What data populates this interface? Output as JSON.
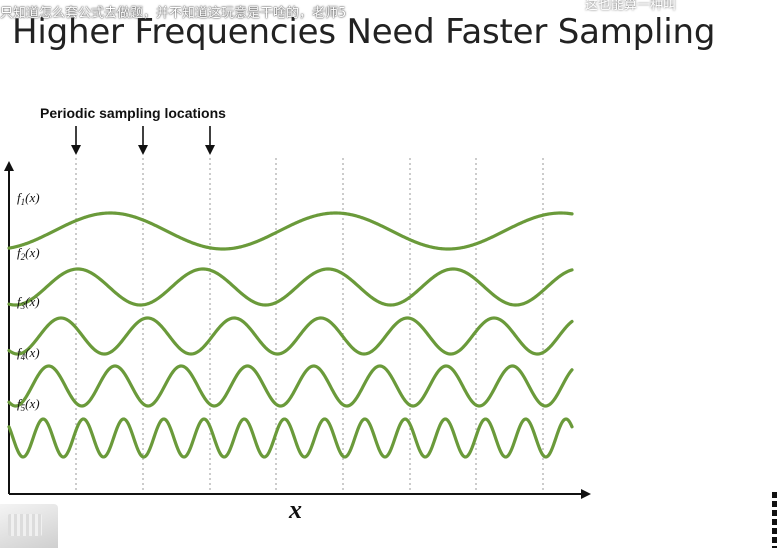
{
  "overlay": {
    "comment_left": "只知道怎么套公式去做题，并不知道这玩意是干啥的，老师5",
    "comment_right": "这也能算一种叫"
  },
  "slide": {
    "title": "Higher Frequencies Need Faster Sampling"
  },
  "figure": {
    "sampling_label": "Periodic sampling locations",
    "x_axis_label": "x",
    "sampling_positions": [
      76,
      143,
      210,
      276,
      343,
      410,
      476,
      543
    ],
    "arrow_positions": [
      76,
      143,
      210
    ],
    "functions": [
      {
        "label": "f1(x)",
        "sub": "1",
        "name": "f",
        "periods_shown": 2.5,
        "color": "#6a9a3a"
      },
      {
        "label": "f2(x)",
        "sub": "2",
        "name": "f",
        "periods_shown": 4.5,
        "color": "#6a9a3a"
      },
      {
        "label": "f3(x)",
        "sub": "3",
        "name": "f",
        "periods_shown": 6.5,
        "color": "#6a9a3a"
      },
      {
        "label": "f4(x)",
        "sub": "4",
        "name": "f",
        "periods_shown": 8.5,
        "color": "#6a9a3a"
      },
      {
        "label": "f5(x)",
        "sub": "5",
        "name": "f",
        "periods_shown": 14,
        "color": "#6a9a3a"
      }
    ],
    "colors": {
      "wave": "#6a9a3a",
      "axis": "#111111",
      "guide": "#9a9a9a"
    }
  }
}
